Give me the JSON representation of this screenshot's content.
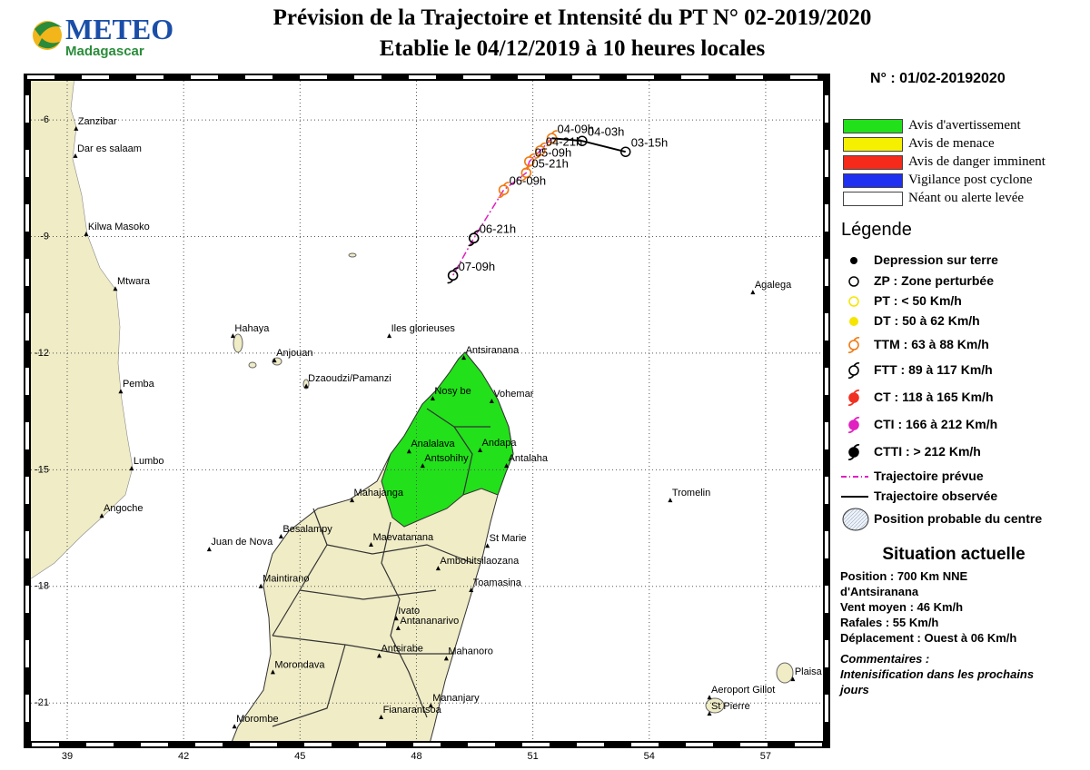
{
  "header": {
    "logo": {
      "brand": "METEO",
      "country": "Madagascar"
    },
    "title": "Prévision de la Trajectoire et Intensité du PT N° 02-2019/2020",
    "subtitle": "Etablie le 04/12/2019 à 10 heures locales"
  },
  "map": {
    "xlim": [
      37.97,
      58.57
    ],
    "ylim": [
      -22.07,
      -4.9
    ],
    "xticks": [
      39,
      42,
      45,
      48,
      51,
      54,
      57
    ],
    "yticks": [
      -6,
      -9,
      -12,
      -15,
      -18,
      -21
    ],
    "grid": true,
    "places": [
      {
        "name": "Zanzibar",
        "lon": 39.23,
        "lat": -6.23
      },
      {
        "name": "Dar es salaam",
        "lon": 39.21,
        "lat": -6.93
      },
      {
        "name": "Kilwa Masoko",
        "lon": 39.49,
        "lat": -8.94
      },
      {
        "name": "Mtwara",
        "lon": 40.24,
        "lat": -10.35
      },
      {
        "name": "Pemba",
        "lon": 40.38,
        "lat": -12.99
      },
      {
        "name": "Lumbo",
        "lon": 40.66,
        "lat": -14.97
      },
      {
        "name": "Angoche",
        "lon": 39.89,
        "lat": -16.19
      },
      {
        "name": "Hahaya",
        "lon": 43.27,
        "lat": -11.56
      },
      {
        "name": "Anjouan",
        "lon": 44.34,
        "lat": -12.19
      },
      {
        "name": "Dzaoudzi/Pamanzi",
        "lon": 45.16,
        "lat": -12.85
      },
      {
        "name": "Iles glorieuses",
        "lon": 47.3,
        "lat": -11.56
      },
      {
        "name": "Antsiranana",
        "lon": 49.22,
        "lat": -12.12
      },
      {
        "name": "Nosy be",
        "lon": 48.42,
        "lat": -13.17
      },
      {
        "name": "Vohemar",
        "lon": 49.94,
        "lat": -13.24
      },
      {
        "name": "Analalava",
        "lon": 47.81,
        "lat": -14.53
      },
      {
        "name": "Antsohihy",
        "lon": 48.16,
        "lat": -14.9
      },
      {
        "name": "Andapa",
        "lon": 49.64,
        "lat": -14.5
      },
      {
        "name": "Antalaha",
        "lon": 50.32,
        "lat": -14.9
      },
      {
        "name": "Mahajanga",
        "lon": 46.34,
        "lat": -15.79
      },
      {
        "name": "Tromelin",
        "lon": 54.54,
        "lat": -15.79
      },
      {
        "name": "Besalampy",
        "lon": 44.51,
        "lat": -16.72
      },
      {
        "name": "Maevatanana",
        "lon": 46.83,
        "lat": -16.93
      },
      {
        "name": "Juan de Nova",
        "lon": 42.66,
        "lat": -17.05
      },
      {
        "name": "St Marie",
        "lon": 49.83,
        "lat": -16.96
      },
      {
        "name": "Ambohitsilaozana",
        "lon": 48.56,
        "lat": -17.54
      },
      {
        "name": "Toamasina",
        "lon": 49.41,
        "lat": -18.1
      },
      {
        "name": "Maintirano",
        "lon": 43.99,
        "lat": -18.0
      },
      {
        "name": "Ivato",
        "lon": 47.48,
        "lat": -18.83
      },
      {
        "name": "Antananarivo",
        "lon": 47.53,
        "lat": -19.08
      },
      {
        "name": "Antsirabe",
        "lon": 47.04,
        "lat": -19.79
      },
      {
        "name": "Mahanoro",
        "lon": 48.77,
        "lat": -19.86
      },
      {
        "name": "Morondava",
        "lon": 44.3,
        "lat": -20.21
      },
      {
        "name": "Agalega",
        "lon": 56.67,
        "lat": -10.44
      },
      {
        "name": "Plaisa",
        "lon": 57.7,
        "lat": -20.39
      },
      {
        "name": "Aeroport Gillot",
        "lon": 55.55,
        "lat": -20.86
      },
      {
        "name": "St Pierre",
        "lon": 55.55,
        "lat": -21.28
      },
      {
        "name": "Mananjary",
        "lon": 48.37,
        "lat": -21.07
      },
      {
        "name": "Fianarantsoa",
        "lon": 47.09,
        "lat": -21.37
      },
      {
        "name": "Morombe",
        "lon": 43.31,
        "lat": -21.61
      }
    ],
    "observed_track": {
      "color": "#000000",
      "points": [
        {
          "label": "03-15h",
          "lon": 53.39,
          "lat": -6.82,
          "color": "#000000",
          "marker": "ring"
        },
        {
          "label": "04-03h",
          "lon": 52.27,
          "lat": -6.54,
          "color": "#000000",
          "marker": "ring"
        }
      ]
    },
    "forecast_track": {
      "color": "#e020c0",
      "points": [
        {
          "label": "04-09h",
          "lon": 51.49,
          "lat": -6.47,
          "color": "#f07a10",
          "marker": "swirl"
        },
        {
          "label": "04-21h",
          "lon": 51.19,
          "lat": -6.79,
          "color": "#f07a10",
          "marker": "swirl"
        },
        {
          "label": "05-09h",
          "lon": 50.91,
          "lat": -7.07,
          "color": "#f07a10",
          "marker": "swirl"
        },
        {
          "label": "05-21h",
          "lon": 50.83,
          "lat": -7.36,
          "color": "#f07a10",
          "marker": "swirl"
        },
        {
          "label": "06-09h",
          "lon": 50.25,
          "lat": -7.8,
          "color": "#f07a10",
          "marker": "swirl"
        },
        {
          "label": "06-21h",
          "lon": 49.48,
          "lat": -9.04,
          "color": "#000000",
          "marker": "swirl"
        },
        {
          "label": "07-09h",
          "lon": 48.94,
          "lat": -10.0,
          "color": "#000000",
          "marker": "swirl"
        }
      ]
    }
  },
  "panel": {
    "bulletin": "N° : 01/02-20192020",
    "warnings": [
      {
        "label": "Avis d'avertissement",
        "color": "#22e01a"
      },
      {
        "label": "Avis de menace",
        "color": "#f5f000"
      },
      {
        "label": "Avis de danger imminent",
        "color": "#f52a1a"
      },
      {
        "label": "Vigilance post cyclone",
        "color": "#2030f0"
      },
      {
        "label": "Néant ou alerte levée",
        "color": "#ffffff"
      }
    ],
    "legend": {
      "title": "Légende",
      "items": [
        {
          "label": "Depression sur terre",
          "marker": "dot",
          "color": "#000000"
        },
        {
          "label": "ZP : Zone perturbée",
          "marker": "ring",
          "color": "#000000"
        },
        {
          "label": "PT : < 50 Km/h",
          "marker": "ring",
          "color": "#f5e500"
        },
        {
          "label": "DT : 50 à 62 Km/h",
          "marker": "disc",
          "color": "#f5e500"
        },
        {
          "label": "TTM : 63 à 88 Km/h",
          "marker": "swirl",
          "color": "#f07a10"
        },
        {
          "label": "FTT : 89 à 117 Km/h",
          "marker": "swirl",
          "color": "#000000"
        },
        {
          "label": "CT : 118 à 165 Km/h",
          "marker": "swirl-filled",
          "color": "#f03020"
        },
        {
          "label": "CTI : 166 à 212 Km/h",
          "marker": "swirl-filled",
          "color": "#e020c0"
        },
        {
          "label": "CTTI : > 212 Km/h",
          "marker": "swirl-filled",
          "color": "#000000"
        },
        {
          "label": "Trajectoire prévue",
          "marker": "dash",
          "color": "#e020c0"
        },
        {
          "label": "Trajectoire observée",
          "marker": "line",
          "color": "#000000"
        },
        {
          "label": "Position probable du centre",
          "marker": "area",
          "color": "#c8d8ee"
        }
      ]
    },
    "situation": {
      "title": "Situation actuelle",
      "lines": [
        "Position : 700 Km NNE",
        "d'Antsiranana",
        "Vent moyen : 46 Km/h",
        "Rafales : 55 Km/h",
        "Déplacement : Ouest à 06 Km/h"
      ]
    },
    "comments": {
      "title": "Commentaires :",
      "lines": [
        "Intenisification dans les prochains",
        "jours"
      ]
    }
  }
}
